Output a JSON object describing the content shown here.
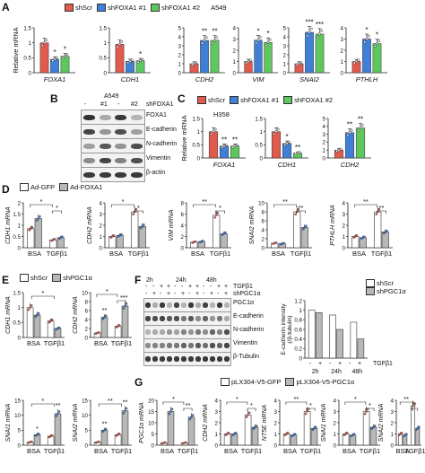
{
  "colors": {
    "scr": "#e05a4e",
    "foxa1_1": "#3f7fd6",
    "foxa1_2": "#5ec85e",
    "white": "#ffffff",
    "grey": "#b8b8b8",
    "pgc_dark": "#3f3fa0"
  },
  "panels": {
    "A": {
      "label": "A",
      "cell_line": "A549",
      "legend": [
        "shScr",
        "shFOXA1 #1",
        "shFOXA1 #2"
      ],
      "ylabel": "Relative mRNA"
    },
    "B": {
      "label": "B",
      "cell_line": "A549",
      "lane_labels": [
        "-",
        "#1",
        "-",
        "#2"
      ],
      "sh_label": "shFOXA1",
      "bands": [
        "FOXA1",
        "E-cadherin",
        "N-cadherin",
        "Vimentin",
        "β-actin"
      ]
    },
    "C": {
      "label": "C",
      "cell_line": "H358",
      "legend": [
        "shScr",
        "shFOXA1 #1",
        "shFOXA1 #2"
      ],
      "ylabel": "Relative mRNA"
    },
    "D": {
      "label": "D",
      "legend": [
        "Ad-GFP",
        "Ad-FOXA1"
      ]
    },
    "E": {
      "label": "E",
      "legend": [
        "shScr",
        "shPGC1α"
      ]
    },
    "F": {
      "label": "F",
      "times": [
        "2h",
        "24h",
        "48h"
      ],
      "rows": [
        "TGFβ1",
        "shPGC1α"
      ],
      "row_signs": {
        "tgf": [
          "-",
          "+",
          "-",
          "+",
          "-",
          "+"
        ],
        "sh": [
          "-",
          "+",
          "-",
          "+",
          "-",
          "+"
        ]
      },
      "bands": [
        "PGC1α",
        "E-cadherin",
        "N-cadherin",
        "Vimentin",
        "β-Tubulin"
      ],
      "legend": [
        "shScr",
        "shPGC1α"
      ],
      "ylabel_1": "E-cadherin intensity",
      "ylabel_2": "(/β-tubulin)",
      "xlabel": "TGFβ1"
    },
    "G": {
      "label": "G",
      "legend": [
        "pLX304-V5-GFP",
        "pLX304-V5-PGC1α"
      ]
    }
  },
  "chart_data": [
    {
      "panel": "A",
      "type": "bar",
      "title": "FOXA1",
      "categories": [
        "shScr",
        "shFOXA1 #1",
        "shFOXA1 #2"
      ],
      "values": [
        1.0,
        0.45,
        0.55
      ],
      "ylim": [
        0,
        1.5
      ],
      "yticks": [
        0,
        0.5,
        1,
        1.5
      ],
      "sig": [
        "",
        "*",
        "*"
      ]
    },
    {
      "panel": "A",
      "type": "bar",
      "title": "CDH1",
      "categories": [
        "shScr",
        "shFOXA1 #1",
        "shFOXA1 #2"
      ],
      "values": [
        0.95,
        0.38,
        0.4
      ],
      "ylim": [
        0,
        1.5
      ],
      "yticks": [
        0,
        0.5,
        1,
        1.5
      ],
      "sig": [
        "",
        "",
        "*"
      ]
    },
    {
      "panel": "A",
      "type": "bar",
      "title": "CDH2",
      "categories": [
        "shScr",
        "shFOXA1 #1",
        "shFOXA1 #2"
      ],
      "values": [
        1.0,
        3.6,
        3.6
      ],
      "ylim": [
        0,
        5
      ],
      "yticks": [
        0,
        1,
        2,
        3,
        4,
        5
      ],
      "sig": [
        "",
        "**",
        "**"
      ]
    },
    {
      "panel": "A",
      "type": "bar",
      "title": "VIM",
      "categories": [
        "shScr",
        "shFOXA1 #1",
        "shFOXA1 #2"
      ],
      "values": [
        1.0,
        2.9,
        2.7
      ],
      "ylim": [
        0,
        4
      ],
      "yticks": [
        0,
        1,
        2,
        3,
        4
      ],
      "sig": [
        "",
        "*",
        "*"
      ]
    },
    {
      "panel": "A",
      "type": "bar",
      "title": "SNAI2",
      "categories": [
        "shScr",
        "shFOXA1 #1",
        "shFOXA1 #2"
      ],
      "values": [
        1.0,
        4.5,
        4.3
      ],
      "ylim": [
        0,
        5
      ],
      "yticks": [
        0,
        1,
        2,
        3,
        4,
        5
      ],
      "sig": [
        "",
        "***",
        "***"
      ]
    },
    {
      "panel": "A",
      "type": "bar",
      "title": "PTHLH",
      "categories": [
        "shScr",
        "shFOXA1 #1",
        "shFOXA1 #2"
      ],
      "values": [
        1.0,
        3.0,
        2.6
      ],
      "ylim": [
        0,
        4
      ],
      "yticks": [
        0,
        1,
        2,
        3,
        4
      ],
      "sig": [
        "",
        "*",
        "*"
      ]
    },
    {
      "panel": "C",
      "type": "bar",
      "title": "FOXA1",
      "categories": [
        "shScr",
        "shFOXA1 #1",
        "shFOXA1 #2"
      ],
      "values": [
        1.0,
        0.45,
        0.45
      ],
      "ylim": [
        0,
        1.5
      ],
      "yticks": [
        0,
        0.5,
        1,
        1.5
      ],
      "sig": [
        "",
        "**",
        "**"
      ]
    },
    {
      "panel": "C",
      "type": "bar",
      "title": "CDH1",
      "categories": [
        "shScr",
        "shFOXA1 #1",
        "shFOXA1 #2"
      ],
      "values": [
        1.0,
        0.55,
        0.18
      ],
      "ylim": [
        0,
        1.5
      ],
      "yticks": [
        0,
        0.5,
        1,
        1.5
      ],
      "sig": [
        "",
        "*",
        "**"
      ]
    },
    {
      "panel": "C",
      "type": "bar",
      "title": "CDH2",
      "categories": [
        "shScr",
        "shFOXA1 #1",
        "shFOXA1 #2"
      ],
      "values": [
        1.0,
        3.2,
        3.8
      ],
      "ylim": [
        0,
        5
      ],
      "yticks": [
        0,
        1,
        2,
        3,
        4,
        5
      ],
      "sig": [
        "",
        "**",
        "**"
      ]
    },
    {
      "panel": "D",
      "type": "bar",
      "ylabel": "CDH1 mRNA",
      "groups": [
        "BSA",
        "TGFβ1"
      ],
      "series": [
        {
          "name": "Ad-GFP",
          "values": [
            0.85,
            0.35
          ]
        },
        {
          "name": "Ad-FOXA1",
          "values": [
            1.3,
            0.45
          ]
        }
      ],
      "ylim": [
        0,
        2
      ],
      "yticks": [
        0,
        0.5,
        1,
        1.5,
        2
      ],
      "brackets": [
        "*",
        "*"
      ]
    },
    {
      "panel": "D",
      "type": "bar",
      "ylabel": "CDH2 mRNA",
      "groups": [
        "BSA",
        "TGFβ1"
      ],
      "series": [
        {
          "name": "Ad-GFP",
          "values": [
            1.0,
            3.2
          ]
        },
        {
          "name": "Ad-FOXA1",
          "values": [
            1.1,
            1.9
          ]
        }
      ],
      "ylim": [
        0,
        4
      ],
      "yticks": [
        0,
        1,
        2,
        3,
        4
      ],
      "brackets": [
        "*",
        "*"
      ]
    },
    {
      "panel": "D",
      "type": "bar",
      "ylabel": "VIM mRNA",
      "groups": [
        "BSA",
        "TGFβ1"
      ],
      "series": [
        {
          "name": "Ad-GFP",
          "values": [
            1.0,
            5.8
          ]
        },
        {
          "name": "Ad-FOXA1",
          "values": [
            1.1,
            2.5
          ]
        }
      ],
      "ylim": [
        0,
        8
      ],
      "yticks": [
        0,
        2,
        4,
        6,
        8
      ],
      "brackets": [
        "**",
        "*"
      ]
    },
    {
      "panel": "D",
      "type": "bar",
      "ylabel": "SNAI2 mRNA",
      "groups": [
        "BSA",
        "TGFβ1"
      ],
      "series": [
        {
          "name": "Ad-GFP",
          "values": [
            1.0,
            8.0
          ]
        },
        {
          "name": "Ad-FOXA1",
          "values": [
            0.9,
            4.5
          ]
        }
      ],
      "ylim": [
        0,
        10
      ],
      "yticks": [
        0,
        2,
        4,
        6,
        8,
        10
      ],
      "brackets": [
        "**",
        "**"
      ]
    },
    {
      "panel": "D",
      "type": "bar",
      "ylabel": "PTHLH mRNA",
      "groups": [
        "BSA",
        "TGFβ1"
      ],
      "series": [
        {
          "name": "Ad-GFP",
          "values": [
            1.0,
            3.2
          ]
        },
        {
          "name": "Ad-FOXA1",
          "values": [
            0.9,
            1.4
          ]
        }
      ],
      "ylim": [
        0,
        4
      ],
      "yticks": [
        0,
        1,
        2,
        3,
        4
      ],
      "brackets": [
        "**",
        "**"
      ]
    },
    {
      "panel": "E",
      "type": "bar",
      "ylabel": "CDH1 mRNA",
      "groups": [
        "BSA",
        "TGFβ1"
      ],
      "series": [
        {
          "name": "shScr",
          "values": [
            1.0,
            0.55
          ]
        },
        {
          "name": "shPGC1α",
          "values": [
            0.75,
            0.3
          ]
        }
      ],
      "ylim": [
        0,
        1.5
      ],
      "yticks": [
        0,
        0.5,
        1,
        1.5
      ],
      "brackets": [
        "*"
      ]
    },
    {
      "panel": "E",
      "type": "bar",
      "ylabel": "CDH2 mRNA",
      "groups": [
        "BSA",
        "TGFβ1"
      ],
      "series": [
        {
          "name": "shScr",
          "values": [
            1.0,
            2.5
          ]
        },
        {
          "name": "shPGC1α",
          "values": [
            4.5,
            7.0
          ]
        }
      ],
      "ylim": [
        0,
        10
      ],
      "yticks": [
        0,
        2,
        4,
        6,
        8,
        10
      ],
      "brackets": [
        "*",
        "*"
      ],
      "sig": [
        "",
        "**",
        "",
        "**"
      ]
    },
    {
      "panel": "E",
      "type": "bar",
      "ylabel": "SNAI1 mRNA",
      "groups": [
        "BSA",
        "TGFβ1"
      ],
      "series": [
        {
          "name": "shScr",
          "values": [
            1.0,
            3.0
          ]
        },
        {
          "name": "shPGC1α",
          "values": [
            3.5,
            10.5
          ]
        }
      ],
      "ylim": [
        0,
        15
      ],
      "yticks": [
        0,
        5,
        10,
        15
      ],
      "brackets": [
        "*"
      ],
      "sig": [
        "",
        "*",
        "",
        "**"
      ]
    },
    {
      "panel": "E",
      "type": "bar",
      "ylabel": "SNAI2 mRNA",
      "groups": [
        "BSA",
        "TGFβ1"
      ],
      "series": [
        {
          "name": "shScr",
          "values": [
            1.0,
            3.5
          ]
        },
        {
          "name": "shPGC1α",
          "values": [
            5.0,
            11.5
          ]
        }
      ],
      "ylim": [
        0,
        15
      ],
      "yticks": [
        0,
        5,
        10,
        15
      ],
      "brackets": [
        "**"
      ],
      "sig": [
        "",
        "**",
        "",
        "**"
      ]
    },
    {
      "panel": "F",
      "type": "bar",
      "ylabel": "E-cadherin intensity (/β-tubulin)",
      "groups": [
        "2h",
        "24h",
        "48h"
      ],
      "series": [
        {
          "name": "shScr",
          "values": [
            1.0,
            0.9,
            0.75
          ]
        },
        {
          "name": "shPGC1α",
          "values": [
            0.95,
            0.6,
            0.4
          ]
        }
      ],
      "ylim": [
        0,
        1.2
      ],
      "yticks": [
        0,
        0.2,
        0.4,
        0.6,
        0.8,
        1,
        1.2
      ]
    },
    {
      "panel": "G",
      "type": "bar",
      "ylabel": "PGC1α mRNA",
      "groups": [
        "BSA",
        "TGFβ1"
      ],
      "series": [
        {
          "name": "pLX304-V5-GFP",
          "values": [
            1.0,
            1.0
          ]
        },
        {
          "name": "pLX304-V5-PGC1α",
          "values": [
            15.0,
            12.5
          ]
        }
      ],
      "ylim": [
        0,
        20
      ],
      "yticks": [
        0,
        5,
        10,
        15,
        20
      ],
      "brackets": [
        "*",
        "**"
      ]
    },
    {
      "panel": "G",
      "type": "bar",
      "ylabel": "CDH2 mRNA",
      "groups": [
        "BSA",
        "TGFβ1"
      ],
      "series": [
        {
          "name": "pLX304-V5-GFP",
          "values": [
            1.0,
            2.7
          ]
        },
        {
          "name": "pLX304-V5-PGC1α",
          "values": [
            1.0,
            1.6
          ]
        }
      ],
      "ylim": [
        0,
        4
      ],
      "yticks": [
        0,
        1,
        2,
        3,
        4
      ],
      "brackets": [
        "*",
        "*"
      ]
    },
    {
      "panel": "G",
      "type": "bar",
      "ylabel": "NT5E mRNA",
      "groups": [
        "BSA",
        "TGFβ1"
      ],
      "series": [
        {
          "name": "pLX304-V5-GFP",
          "values": [
            1.0,
            3.0
          ]
        },
        {
          "name": "pLX304-V5-PGC1α",
          "values": [
            0.9,
            1.5
          ]
        }
      ],
      "ylim": [
        0,
        4
      ],
      "yticks": [
        0,
        1,
        2,
        3,
        4
      ],
      "brackets": [
        "**",
        "*"
      ]
    },
    {
      "panel": "G",
      "type": "bar",
      "ylabel": "SNAI1 mRNA",
      "groups": [
        "BSA",
        "TGFβ1"
      ],
      "series": [
        {
          "name": "pLX304-V5-GFP",
          "values": [
            1.0,
            3.0
          ]
        },
        {
          "name": "pLX304-V5-PGC1α",
          "values": [
            0.9,
            1.6
          ]
        }
      ],
      "ylim": [
        0,
        4
      ],
      "yticks": [
        0,
        1,
        2,
        3,
        4
      ],
      "brackets": [
        "*",
        "*"
      ]
    },
    {
      "panel": "G",
      "type": "bar",
      "ylabel": "SNAI2 mRNA",
      "groups": [
        "BSA",
        "TGFβ1"
      ],
      "series": [
        {
          "name": "pLX304-V5-GFP",
          "values": [
            1.0,
            3.5
          ]
        },
        {
          "name": "pLX304-V5-PGC1α",
          "values": [
            0.9,
            1.5
          ]
        }
      ],
      "ylim": [
        0,
        4
      ],
      "yticks": [
        0,
        1,
        2,
        3,
        4
      ],
      "brackets": [
        "**",
        "*"
      ]
    }
  ]
}
